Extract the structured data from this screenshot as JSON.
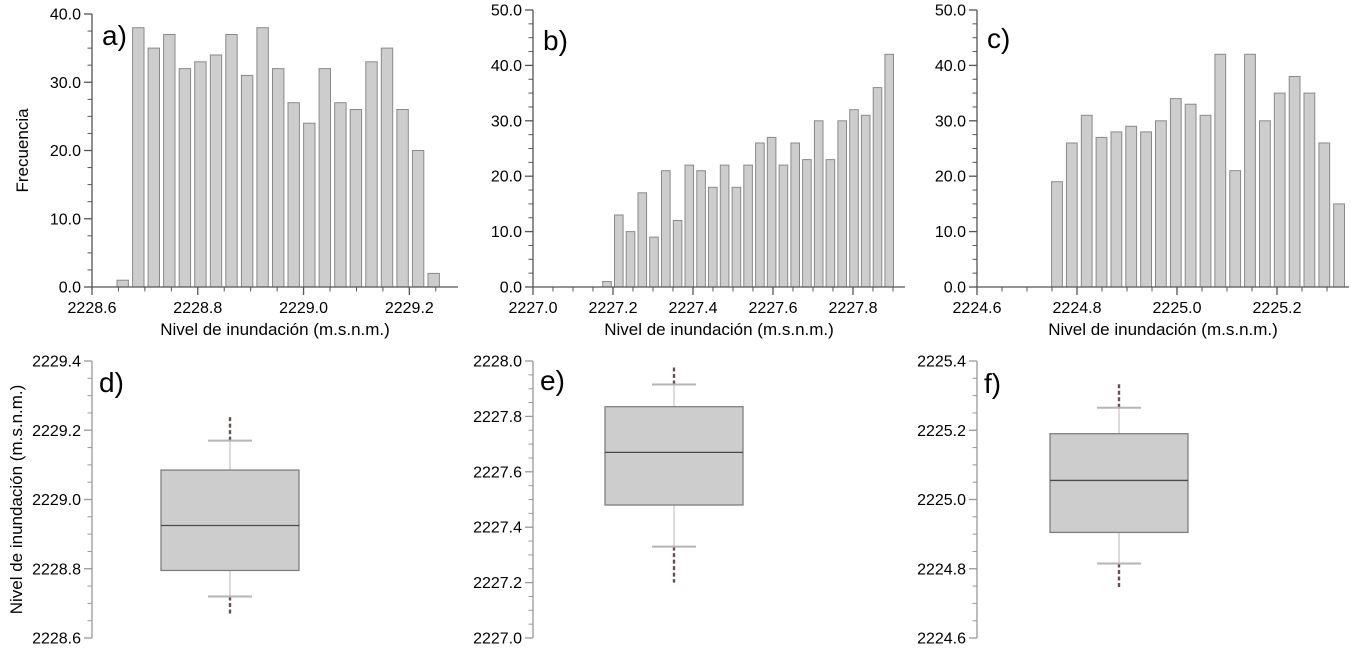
{
  "figure": {
    "x_axis_title": "Nivel de inundación (m.s.n.m.)",
    "hist_y_axis_title": "Frecuencia",
    "box_y_axis_title": "Nivel de inundación (m.s.n.m.)"
  },
  "colors": {
    "background": "#ffffff",
    "bar_fill": "#cdcdcd",
    "bar_stroke": "#8a8a8a",
    "hist_axis": "#555555",
    "box_axis": "#999999",
    "text": "#000000",
    "box_fill": "#cdcdcd",
    "box_stroke": "#7f7f7f",
    "median_line": "#4a4a4a",
    "whisker_line": "#d2d2d2",
    "whisker_cap": "#b5b5b5",
    "outlier_dash": "#6b4f4f"
  },
  "chart_data": [
    {
      "id": "a",
      "type": "bar",
      "panel_label": "a)",
      "xlabel": "Nivel de inundación (m.s.n.m.)",
      "ylabel": "Frecuencia",
      "xlim": [
        2228.6,
        2229.292
      ],
      "ylim": [
        0,
        40
      ],
      "x_ticks": [
        2228.6,
        2228.8,
        2229.0,
        2229.2
      ],
      "y_ticks": [
        0,
        10,
        20,
        30,
        40
      ],
      "x_minor_step": 0.05,
      "y_minor_step": 2.5,
      "bin_first_center": 2228.658,
      "bin_step": 0.0294,
      "values": [
        1,
        38,
        35,
        37,
        32,
        33,
        34,
        37,
        31,
        38,
        32,
        27,
        24,
        32,
        27,
        26,
        33,
        35,
        26,
        20,
        2
      ]
    },
    {
      "id": "b",
      "type": "bar",
      "panel_label": "b)",
      "xlabel": "Nivel de inundación (m.s.n.m.)",
      "ylabel": "",
      "xlim": [
        2227.0,
        2227.93
      ],
      "ylim": [
        0,
        50
      ],
      "x_ticks": [
        2227.0,
        2227.2,
        2227.4,
        2227.6,
        2227.8
      ],
      "y_ticks": [
        0,
        10,
        20,
        30,
        40,
        50
      ],
      "x_minor_step": 0.05,
      "y_minor_step": 2.5,
      "bin_first_center": 2227.185,
      "bin_step": 0.0294,
      "values": [
        1,
        13,
        10,
        17,
        9,
        21,
        12,
        22,
        21,
        18,
        22,
        18,
        22,
        26,
        27,
        22,
        26,
        23,
        30,
        23,
        30,
        32,
        31,
        36,
        42
      ]
    },
    {
      "id": "c",
      "type": "bar",
      "panel_label": "c)",
      "xlabel": "Nivel de inundación (m.s.n.m.)",
      "ylabel": "",
      "xlim": [
        2224.6,
        2225.344
      ],
      "ylim": [
        0,
        50
      ],
      "x_ticks": [
        2224.6,
        2224.8,
        2225.0,
        2225.2
      ],
      "y_ticks": [
        0,
        10,
        20,
        30,
        40,
        50
      ],
      "x_minor_step": 0.05,
      "y_minor_step": 2.5,
      "bin_first_center": 2224.76,
      "bin_step": 0.0297,
      "values": [
        19,
        26,
        31,
        27,
        28,
        29,
        28,
        30,
        34,
        33,
        31,
        42,
        21,
        42,
        30,
        35,
        38,
        35,
        26,
        15
      ]
    },
    {
      "id": "d",
      "type": "box",
      "panel_label": "d)",
      "ylabel": "Nivel de inundación (m.s.n.m.)",
      "ylim": [
        2228.6,
        2229.4
      ],
      "y_ticks": [
        2228.6,
        2228.8,
        2229.0,
        2229.2,
        2229.4
      ],
      "y_minor_step": 0.05,
      "box": {
        "q1": 2228.795,
        "median": 2228.925,
        "q3": 2229.085,
        "whisker_low": 2228.72,
        "whisker_high": 2229.17,
        "outlier_min": 2228.665,
        "outlier_max": 2229.245
      }
    },
    {
      "id": "e",
      "type": "box",
      "panel_label": "e)",
      "ylabel": "",
      "ylim": [
        2227.0,
        2228.0
      ],
      "y_ticks": [
        2227.0,
        2227.2,
        2227.4,
        2227.6,
        2227.8,
        2228.0
      ],
      "y_minor_step": 0.05,
      "box": {
        "q1": 2227.48,
        "median": 2227.67,
        "q3": 2227.835,
        "whisker_low": 2227.33,
        "whisker_high": 2227.915,
        "outlier_min": 2227.2,
        "outlier_max": 2227.98
      }
    },
    {
      "id": "f",
      "type": "box",
      "panel_label": "f)",
      "ylabel": "",
      "ylim": [
        2224.6,
        2225.4
      ],
      "y_ticks": [
        2224.6,
        2224.8,
        2225.0,
        2225.2,
        2225.4
      ],
      "y_minor_step": 0.05,
      "box": {
        "q1": 2224.905,
        "median": 2225.055,
        "q3": 2225.19,
        "whisker_low": 2224.815,
        "whisker_high": 2225.265,
        "outlier_min": 2224.74,
        "outlier_max": 2225.34
      }
    }
  ]
}
